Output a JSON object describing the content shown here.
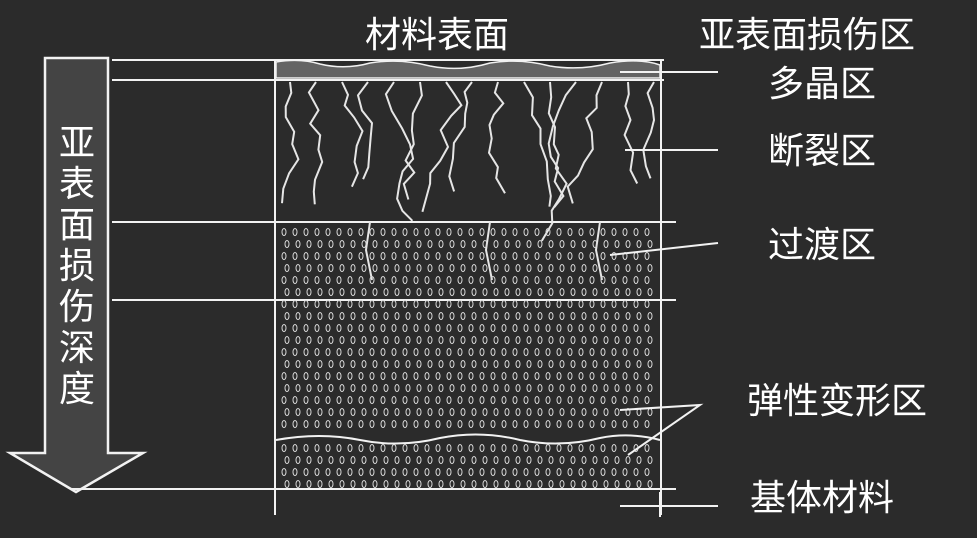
{
  "diagram": {
    "surface_label": "材料表面",
    "depth_label": "亚表面损伤深度",
    "zones": {
      "subsurface_damage": "亚表面损伤区",
      "polycrystalline": "多晶区",
      "fracture": "断裂区",
      "transition": "过渡区",
      "elastic_deformation": "弹性变形区",
      "base_material": "基体材料"
    }
  },
  "colors": {
    "background": "#2b2b2b",
    "line": "#f2f2f2",
    "arrow_fill": "#444444"
  }
}
